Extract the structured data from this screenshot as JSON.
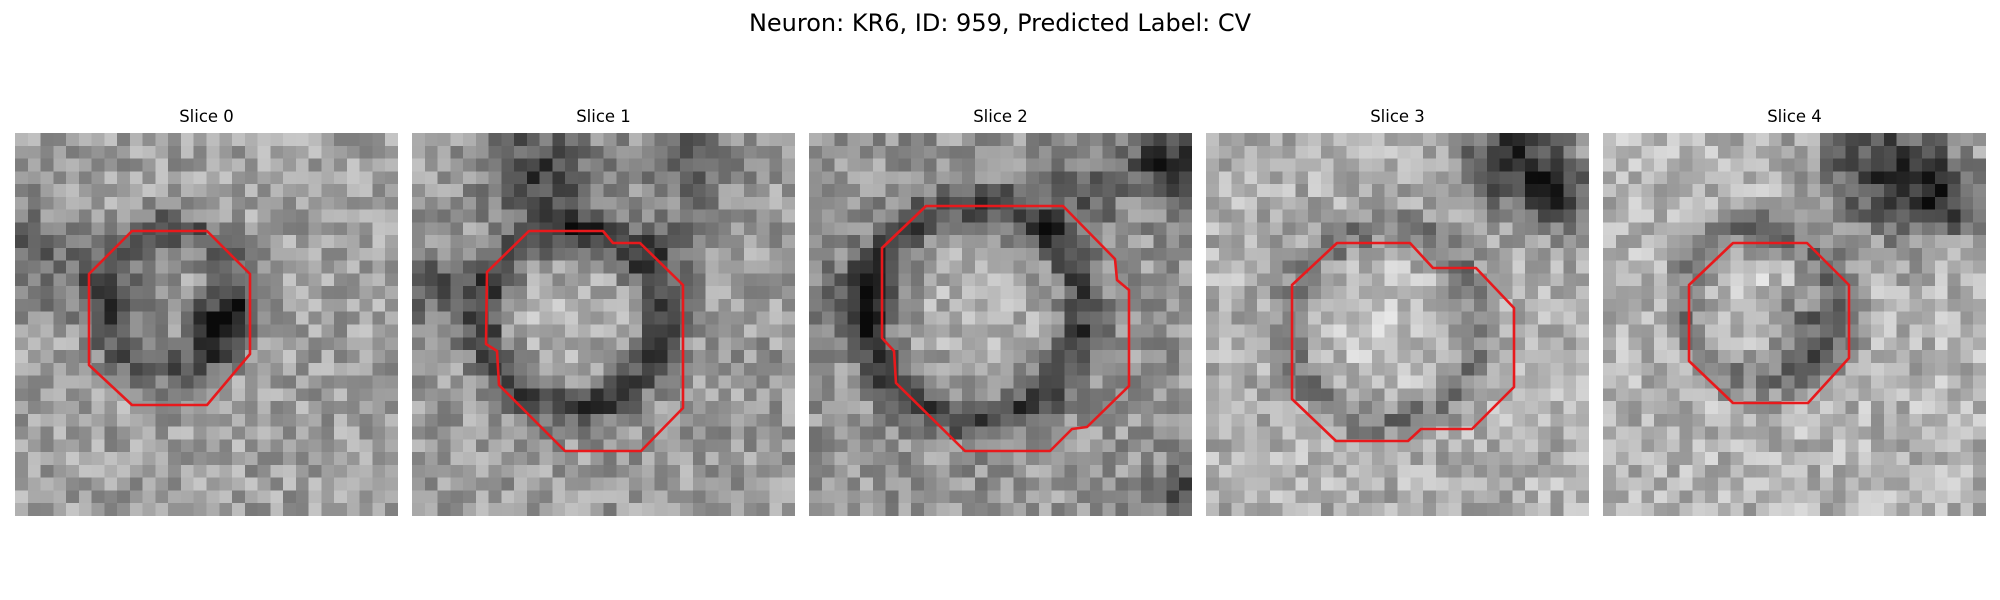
{
  "figure": {
    "title": "Neuron: KR6, ID: 959, Predicted Label: CV"
  },
  "colors": {
    "contour": "#e8191c",
    "background": "#ffffff"
  },
  "slices": [
    {
      "label": "Slice 0"
    },
    {
      "label": "Slice 1"
    },
    {
      "label": "Slice 2"
    },
    {
      "label": "Slice 3"
    },
    {
      "label": "Slice 4"
    }
  ]
}
